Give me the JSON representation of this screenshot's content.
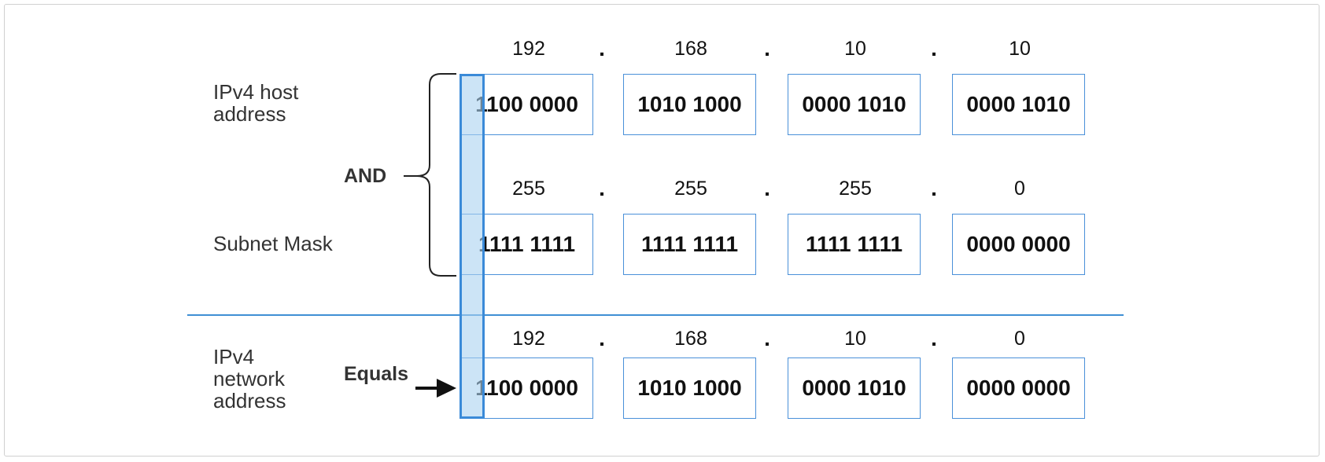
{
  "labels": {
    "host": "IPv4 host\naddress",
    "mask": "Subnet Mask",
    "network": "IPv4\nnetwork\naddress",
    "and": "AND",
    "equals": "Equals"
  },
  "dot": ".",
  "rows": [
    {
      "decimals": [
        "192",
        "168",
        "10",
        "10"
      ],
      "binaries": [
        "1100 0000",
        "1010 1000",
        "0000 1010",
        "0000 1010"
      ]
    },
    {
      "decimals": [
        "255",
        "255",
        "255",
        "0"
      ],
      "binaries": [
        "1111 1111",
        "1111 1111",
        "1111 1111",
        "0000 0000"
      ]
    },
    {
      "decimals": [
        "192",
        "168",
        "10",
        "0"
      ],
      "binaries": [
        "1100 0000",
        "1010 1000",
        "0000 1010",
        "0000 0000"
      ]
    }
  ],
  "colors": {
    "box_border": "#4a90d9",
    "divider": "#3f8fd4",
    "highlight_fill": "#aad2f0",
    "highlight_border": "#3a8ad8"
  }
}
